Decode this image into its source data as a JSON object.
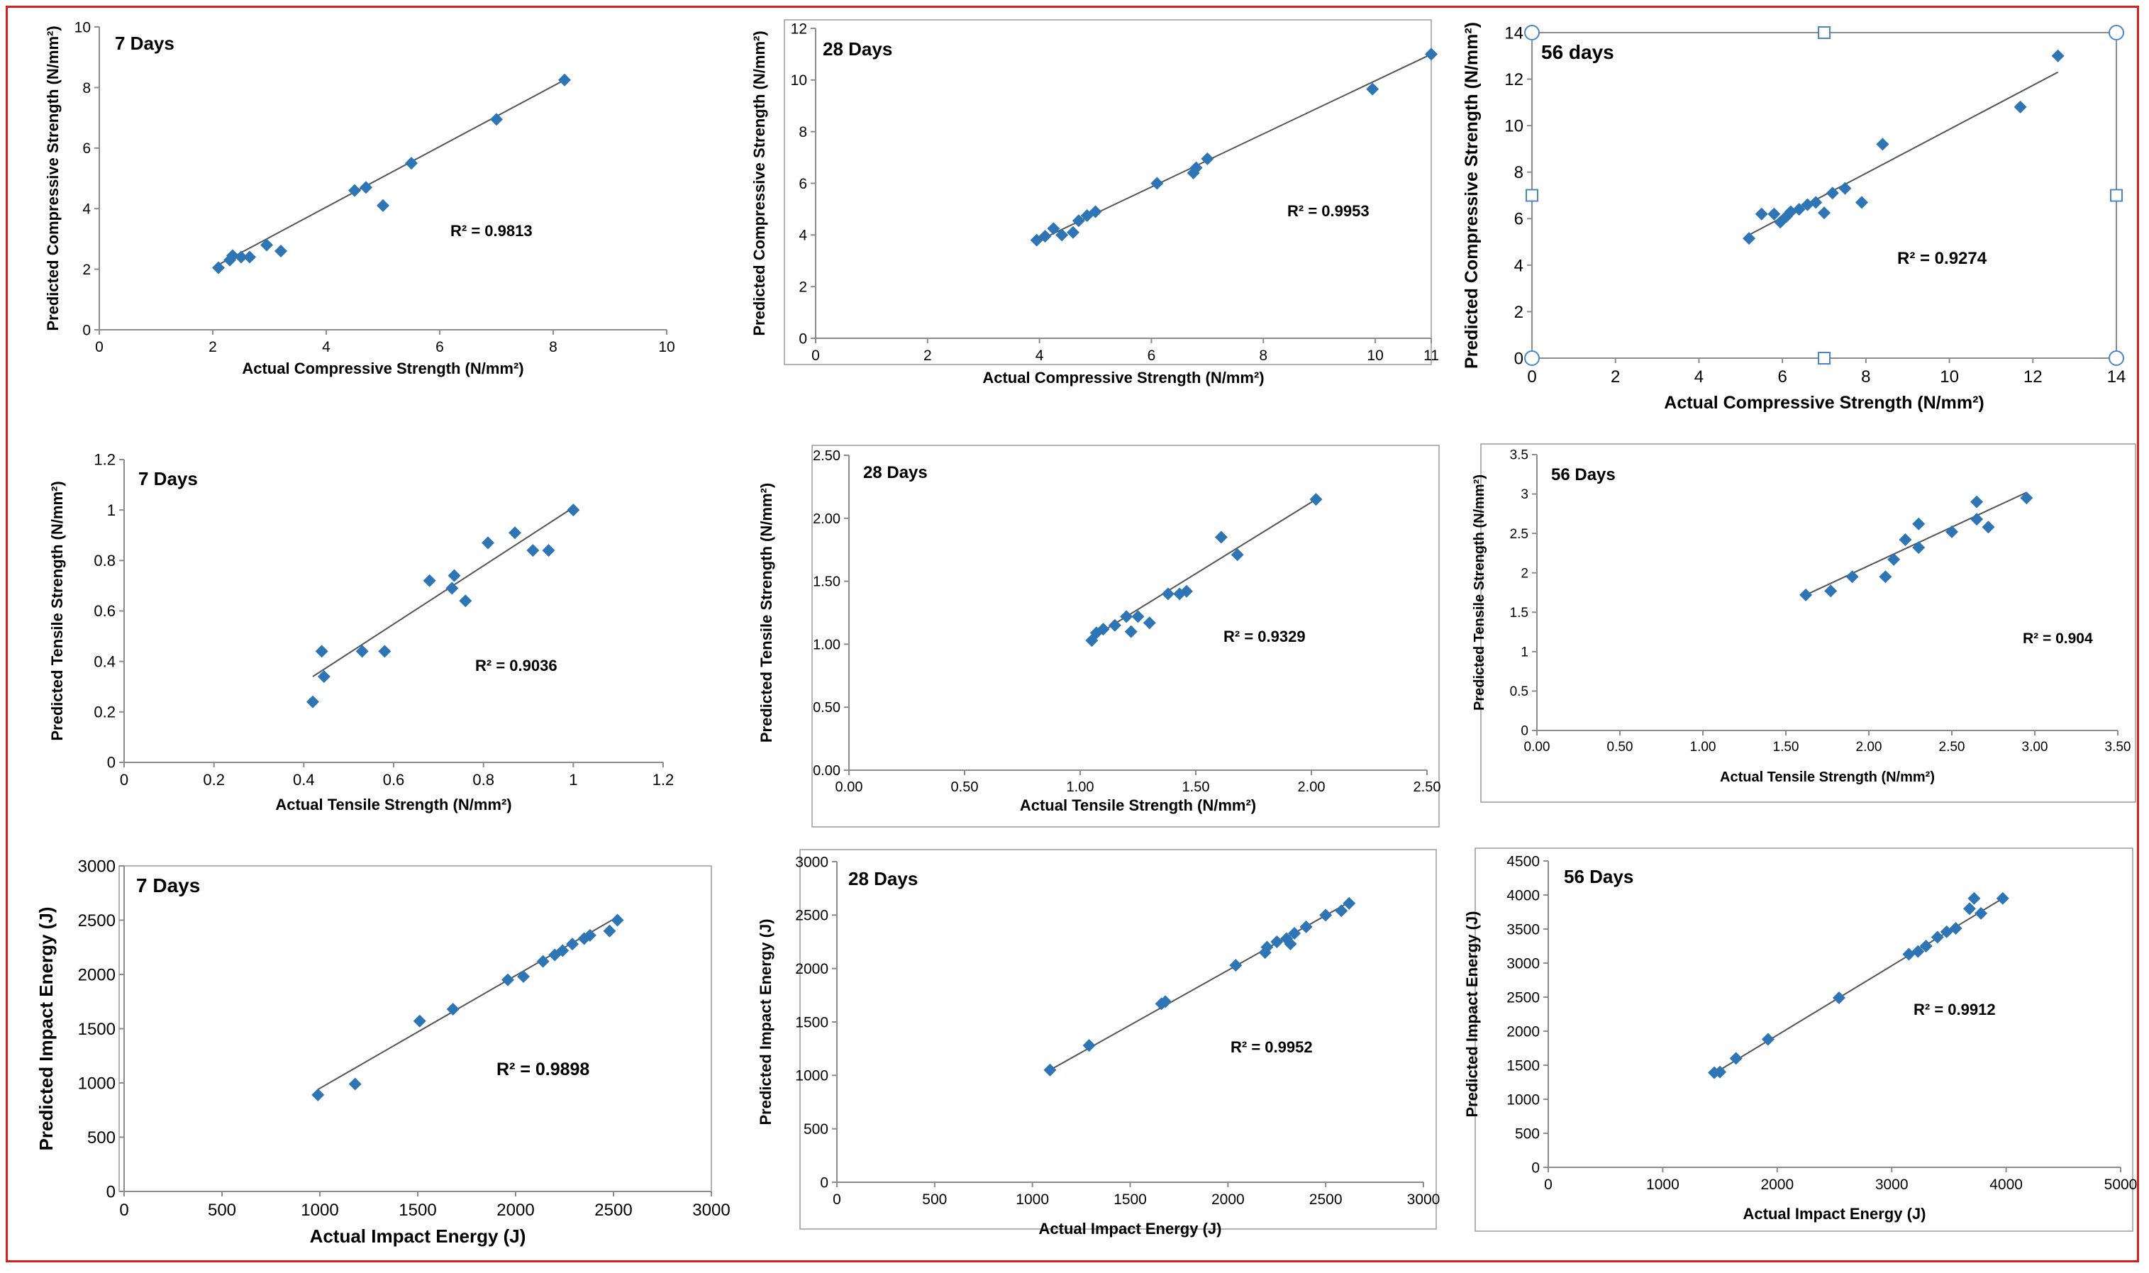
{
  "colors": {
    "frame": "#d62020",
    "marker": "#2e75b6",
    "line": "#555555",
    "axis": "#8c8c8c",
    "text": "#000000",
    "selection": "#4a86c5",
    "selection_fill": "#ffffff"
  },
  "chart_data": [
    {
      "id": "p1",
      "type": "scatter",
      "title": "7 Days",
      "xlabel": "Actual Compressive Strength (N/mm²)",
      "ylabel": "Predicted Compressive Strength (N/mm²)",
      "xlim": [
        0,
        10
      ],
      "ylim": [
        0,
        10
      ],
      "xticks": [
        0,
        2,
        4,
        6,
        8,
        10
      ],
      "xtick_labels": [
        "0",
        "2",
        "4",
        "6",
        "8",
        "10"
      ],
      "yticks": [
        0,
        2,
        4,
        6,
        8,
        10
      ],
      "ytick_labels": [
        "0",
        "2",
        "4",
        "6",
        "8",
        "10"
      ],
      "r2": "R² = 0.9813",
      "trend": [
        [
          2.0,
          2.05
        ],
        [
          8.2,
          8.25
        ]
      ],
      "points": [
        [
          2.1,
          2.05
        ],
        [
          2.3,
          2.3
        ],
        [
          2.35,
          2.45
        ],
        [
          2.5,
          2.4
        ],
        [
          2.65,
          2.4
        ],
        [
          2.95,
          2.8
        ],
        [
          3.2,
          2.6
        ],
        [
          4.5,
          4.6
        ],
        [
          4.7,
          4.7
        ],
        [
          5.0,
          4.1
        ],
        [
          5.5,
          5.5
        ],
        [
          7.0,
          6.95
        ],
        [
          8.2,
          8.25
        ]
      ]
    },
    {
      "id": "p2",
      "type": "scatter",
      "title": "28 Days",
      "xlabel": "Actual Compressive Strength (N/mm²)",
      "ylabel": "Predicted Compressive Strength (N/mm²)",
      "xlim": [
        0,
        11
      ],
      "ylim": [
        0,
        12
      ],
      "xticks": [
        0,
        2,
        4,
        6,
        8,
        10,
        11
      ],
      "xtick_labels": [
        "0",
        "2",
        "4",
        "6",
        "8",
        "10",
        "11"
      ],
      "yticks": [
        0,
        2,
        4,
        6,
        8,
        10,
        12
      ],
      "ytick_labels": [
        "0",
        "2",
        "4",
        "6",
        "8",
        "10",
        "12"
      ],
      "r2": "R² = 0.9953",
      "trend": [
        [
          3.9,
          3.7
        ],
        [
          11.0,
          11.0
        ]
      ],
      "points": [
        [
          3.95,
          3.8
        ],
        [
          4.1,
          3.95
        ],
        [
          4.25,
          4.25
        ],
        [
          4.4,
          4.0
        ],
        [
          4.6,
          4.1
        ],
        [
          4.7,
          4.55
        ],
        [
          4.85,
          4.75
        ],
        [
          5.0,
          4.9
        ],
        [
          6.1,
          6.0
        ],
        [
          6.75,
          6.4
        ],
        [
          6.8,
          6.6
        ],
        [
          7.0,
          6.95
        ],
        [
          9.95,
          9.65
        ],
        [
          11.0,
          11.0
        ]
      ]
    },
    {
      "id": "p3",
      "type": "scatter",
      "title": "56 days",
      "xlabel": "Actual Compressive Strength (N/mm²)",
      "ylabel": "Predicted Compressive Strength (N/mm²)",
      "xlim": [
        0,
        14
      ],
      "ylim": [
        0,
        14
      ],
      "xticks": [
        0,
        2,
        4,
        6,
        8,
        10,
        12,
        14
      ],
      "xtick_labels": [
        "0",
        "2",
        "4",
        "6",
        "8",
        "10",
        "12",
        "14"
      ],
      "yticks": [
        0,
        2,
        4,
        6,
        8,
        10,
        12,
        14
      ],
      "ytick_labels": [
        "0",
        "2",
        "4",
        "6",
        "8",
        "10",
        "12",
        "14"
      ],
      "r2": "R² = 0.9274",
      "trend": [
        [
          5.2,
          5.3
        ],
        [
          12.6,
          12.3
        ]
      ],
      "points": [
        [
          5.2,
          5.15
        ],
        [
          5.5,
          6.2
        ],
        [
          5.8,
          6.2
        ],
        [
          5.95,
          5.85
        ],
        [
          6.1,
          6.1
        ],
        [
          6.2,
          6.3
        ],
        [
          6.4,
          6.4
        ],
        [
          6.6,
          6.6
        ],
        [
          6.8,
          6.7
        ],
        [
          7.0,
          6.25
        ],
        [
          7.2,
          7.1
        ],
        [
          7.5,
          7.3
        ],
        [
          7.9,
          6.7
        ],
        [
          8.4,
          9.2
        ],
        [
          11.7,
          10.8
        ],
        [
          12.6,
          13.0
        ]
      ]
    },
    {
      "id": "p4",
      "type": "scatter",
      "title": "7 Days",
      "xlabel": "Actual Tensile Strength (N/mm²)",
      "ylabel": "Predicted Tensile Strength (N/mm²)",
      "xlim": [
        0,
        1.2
      ],
      "ylim": [
        0,
        1.2
      ],
      "xticks": [
        0,
        0.2,
        0.4,
        0.6,
        0.8,
        1,
        1.2
      ],
      "xtick_labels": [
        "0",
        "0.2",
        "0.4",
        "0.6",
        "0.8",
        "1",
        "1.2"
      ],
      "yticks": [
        0,
        0.2,
        0.4,
        0.6,
        0.8,
        1,
        1.2
      ],
      "ytick_labels": [
        "0",
        "0.2",
        "0.4",
        "0.6",
        "0.8",
        "1",
        "1.2"
      ],
      "r2": "R² = 0.9036",
      "trend": [
        [
          0.42,
          0.34
        ],
        [
          1.0,
          1.01
        ]
      ],
      "points": [
        [
          0.42,
          0.24
        ],
        [
          0.44,
          0.44
        ],
        [
          0.445,
          0.34
        ],
        [
          0.53,
          0.44
        ],
        [
          0.58,
          0.44
        ],
        [
          0.68,
          0.72
        ],
        [
          0.73,
          0.69
        ],
        [
          0.735,
          0.74
        ],
        [
          0.76,
          0.64
        ],
        [
          0.81,
          0.87
        ],
        [
          0.87,
          0.91
        ],
        [
          0.91,
          0.84
        ],
        [
          0.945,
          0.84
        ],
        [
          1.0,
          1.0
        ]
      ]
    },
    {
      "id": "p5",
      "type": "scatter",
      "title": "28 Days",
      "xlabel": "Actual Tensile Strength (N/mm²)",
      "ylabel": "Predicted Tensile Strength (N/mm²)",
      "xlim": [
        0,
        2.5
      ],
      "ylim": [
        0,
        2.5
      ],
      "xticks": [
        0,
        0.5,
        1,
        1.5,
        2,
        2.5
      ],
      "xtick_labels": [
        "0.00",
        "0.50",
        "1.00",
        "1.50",
        "2.00",
        "2.50"
      ],
      "yticks": [
        0,
        0.5,
        1,
        1.5,
        2,
        2.5
      ],
      "ytick_labels": [
        "0.00",
        "0.50",
        "1.00",
        "1.50",
        "2.00",
        "2.50"
      ],
      "r2": "R² = 0.9329",
      "trend": [
        [
          1.05,
          1.05
        ],
        [
          2.02,
          2.15
        ]
      ],
      "points": [
        [
          1.05,
          1.03
        ],
        [
          1.07,
          1.09
        ],
        [
          1.1,
          1.12
        ],
        [
          1.15,
          1.15
        ],
        [
          1.2,
          1.22
        ],
        [
          1.22,
          1.1
        ],
        [
          1.25,
          1.22
        ],
        [
          1.3,
          1.17
        ],
        [
          1.38,
          1.4
        ],
        [
          1.43,
          1.4
        ],
        [
          1.46,
          1.42
        ],
        [
          1.61,
          1.85
        ],
        [
          1.68,
          1.71
        ],
        [
          2.02,
          2.15
        ]
      ]
    },
    {
      "id": "p6",
      "type": "scatter",
      "title": "56 Days",
      "xlabel": "Actual Tensile Strength (N/mm²)",
      "ylabel": "Predicted Tensile Strength (N/mm²)",
      "xlim": [
        0,
        3.5
      ],
      "ylim": [
        0,
        3.5
      ],
      "xticks": [
        0,
        0.5,
        1,
        1.5,
        2,
        2.5,
        3,
        3.5
      ],
      "xtick_labels": [
        "0.00",
        "0.50",
        "1.00",
        "1.50",
        "2.00",
        "2.50",
        "3.00",
        "3.50"
      ],
      "yticks": [
        0,
        0.5,
        1,
        1.5,
        2,
        2.5,
        3,
        3.5
      ],
      "ytick_labels": [
        "0",
        "0.5",
        "1",
        "1.5",
        "2",
        "2.5",
        "3",
        "3.5"
      ],
      "r2": "R² = 0.904",
      "trend": [
        [
          1.6,
          1.7
        ],
        [
          2.95,
          3.02
        ]
      ],
      "points": [
        [
          1.62,
          1.72
        ],
        [
          1.77,
          1.77
        ],
        [
          1.9,
          1.95
        ],
        [
          2.1,
          1.95
        ],
        [
          2.15,
          2.17
        ],
        [
          2.22,
          2.42
        ],
        [
          2.3,
          2.62
        ],
        [
          2.3,
          2.32
        ],
        [
          2.5,
          2.52
        ],
        [
          2.65,
          2.9
        ],
        [
          2.65,
          2.68
        ],
        [
          2.72,
          2.58
        ],
        [
          2.95,
          2.95
        ]
      ]
    },
    {
      "id": "p7",
      "type": "scatter",
      "title": "7 Days",
      "xlabel": "Actual Impact Energy (J)",
      "ylabel": "Predicted Impact Energy (J)",
      "xlim": [
        0,
        3000
      ],
      "ylim": [
        0,
        3000
      ],
      "xticks": [
        0,
        500,
        1000,
        1500,
        2000,
        2500,
        3000
      ],
      "xtick_labels": [
        "0",
        "500",
        "1000",
        "1500",
        "2000",
        "2500",
        "3000"
      ],
      "yticks": [
        0,
        500,
        1000,
        1500,
        2000,
        2500,
        3000
      ],
      "ytick_labels": [
        "0",
        "500",
        "1000",
        "1500",
        "2000",
        "2500",
        "3000"
      ],
      "r2": "R² = 0.9898",
      "trend": [
        [
          990,
          940
        ],
        [
          2530,
          2540
        ]
      ],
      "points": [
        [
          990,
          890
        ],
        [
          1180,
          990
        ],
        [
          1510,
          1570
        ],
        [
          1680,
          1680
        ],
        [
          1960,
          1950
        ],
        [
          2040,
          1980
        ],
        [
          2140,
          2120
        ],
        [
          2200,
          2180
        ],
        [
          2240,
          2220
        ],
        [
          2290,
          2280
        ],
        [
          2350,
          2330
        ],
        [
          2380,
          2360
        ],
        [
          2480,
          2400
        ],
        [
          2520,
          2500
        ]
      ]
    },
    {
      "id": "p8",
      "type": "scatter",
      "title": "28 Days",
      "xlabel": "Actual Impact Energy (J)",
      "ylabel": "Predicted Impact Energy (J)",
      "xlim": [
        0,
        3000
      ],
      "ylim": [
        0,
        3000
      ],
      "xticks": [
        0,
        500,
        1000,
        1500,
        2000,
        2500,
        3000
      ],
      "xtick_labels": [
        "0",
        "500",
        "1000",
        "1500",
        "2000",
        "2500",
        "3000"
      ],
      "yticks": [
        0,
        500,
        1000,
        1500,
        2000,
        2500,
        3000
      ],
      "ytick_labels": [
        "0",
        "500",
        "1000",
        "1500",
        "2000",
        "2500",
        "3000"
      ],
      "r2": "R² = 0.9952",
      "trend": [
        [
          1090,
          1050
        ],
        [
          2620,
          2620
        ]
      ],
      "points": [
        [
          1090,
          1050
        ],
        [
          1290,
          1280
        ],
        [
          1660,
          1670
        ],
        [
          1680,
          1690
        ],
        [
          2040,
          2030
        ],
        [
          2190,
          2150
        ],
        [
          2200,
          2200
        ],
        [
          2250,
          2250
        ],
        [
          2300,
          2280
        ],
        [
          2320,
          2230
        ],
        [
          2340,
          2330
        ],
        [
          2400,
          2390
        ],
        [
          2500,
          2500
        ],
        [
          2580,
          2540
        ],
        [
          2620,
          2610
        ]
      ]
    },
    {
      "id": "p9",
      "type": "scatter",
      "title": "56 Days",
      "xlabel": "Actual Impact Energy (J)",
      "ylabel": "Predicted Impact Energy (J)",
      "xlim": [
        0,
        5000
      ],
      "ylim": [
        0,
        4500
      ],
      "xticks": [
        0,
        1000,
        2000,
        3000,
        4000,
        5000
      ],
      "xtick_labels": [
        "0",
        "1000",
        "2000",
        "3000",
        "4000",
        "5000"
      ],
      "yticks": [
        0,
        500,
        1000,
        1500,
        2000,
        2500,
        3000,
        3500,
        4000,
        4500
      ],
      "ytick_labels": [
        "0",
        "500",
        "1000",
        "1500",
        "2000",
        "2500",
        "3000",
        "3500",
        "4000",
        "4500"
      ],
      "r2": "R² = 0.9912",
      "trend": [
        [
          1450,
          1380
        ],
        [
          3970,
          3950
        ]
      ],
      "points": [
        [
          1450,
          1390
        ],
        [
          1500,
          1400
        ],
        [
          1640,
          1600
        ],
        [
          1920,
          1880
        ],
        [
          2540,
          2490
        ],
        [
          3150,
          3130
        ],
        [
          3230,
          3170
        ],
        [
          3300,
          3250
        ],
        [
          3400,
          3380
        ],
        [
          3480,
          3460
        ],
        [
          3560,
          3510
        ],
        [
          3680,
          3800
        ],
        [
          3720,
          3950
        ],
        [
          3780,
          3730
        ],
        [
          3970,
          3950
        ]
      ]
    }
  ]
}
